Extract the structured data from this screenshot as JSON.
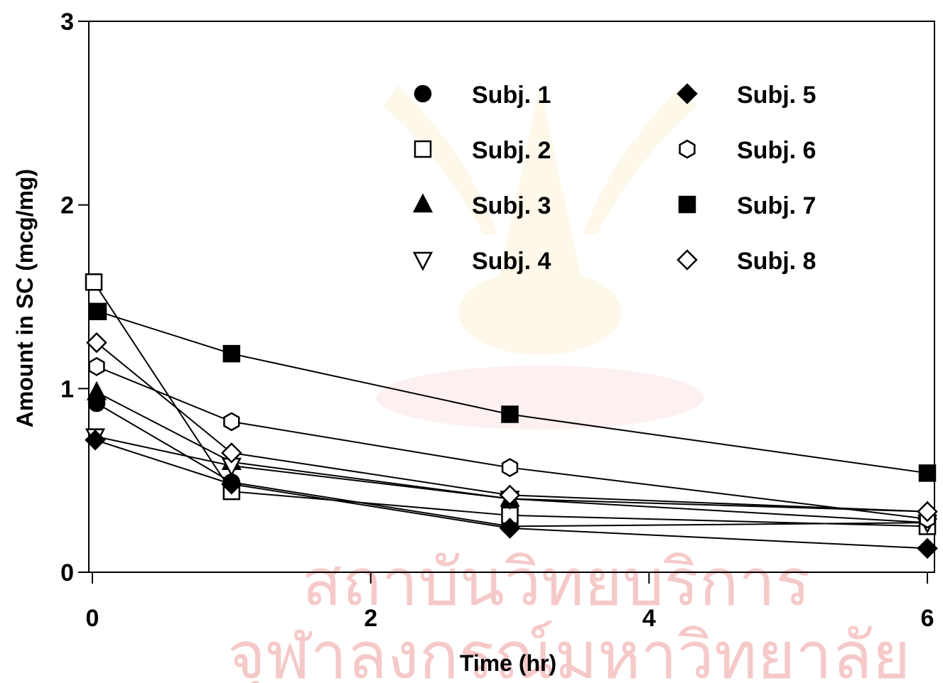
{
  "chart_data": {
    "type": "line",
    "xlabel": "Time (hr)",
    "ylabel": "Amount in SC (mcg/mg)",
    "xlim": [
      0,
      6
    ],
    "ylim": [
      0,
      3
    ],
    "xticks": [
      0,
      2,
      4,
      6
    ],
    "yticks": [
      0,
      1,
      2,
      3
    ],
    "x": [
      0,
      1,
      3,
      6
    ],
    "grid": false,
    "legend_position": "top-right",
    "series": [
      {
        "name": "Subj. 1",
        "marker": "circle-filled",
        "values": [
          0.92,
          0.49,
          0.25,
          0.27
        ]
      },
      {
        "name": "Subj. 2",
        "marker": "square-open",
        "values": [
          1.58,
          0.44,
          0.31,
          0.25
        ]
      },
      {
        "name": "Subj. 3",
        "marker": "triangle-filled",
        "values": [
          0.98,
          0.6,
          0.4,
          0.33
        ]
      },
      {
        "name": "Subj. 4",
        "marker": "triangle-down-open",
        "values": [
          0.74,
          0.58,
          0.4,
          0.27
        ]
      },
      {
        "name": "Subj. 5",
        "marker": "diamond-filled",
        "values": [
          0.72,
          0.48,
          0.24,
          0.13
        ]
      },
      {
        "name": "Subj. 6",
        "marker": "hexagon-open",
        "values": [
          1.12,
          0.82,
          0.57,
          0.29
        ]
      },
      {
        "name": "Subj. 7",
        "marker": "square-filled",
        "values": [
          1.42,
          1.19,
          0.86,
          0.54
        ]
      },
      {
        "name": "Subj. 8",
        "marker": "diamond-open",
        "values": [
          1.25,
          0.65,
          0.42,
          0.33
        ]
      }
    ]
  },
  "watermark": {
    "line1": "สถาบันวิทยบริการ",
    "line2": "จุฬาลงกรณ์มหาวิทยาลัย",
    "color": "#f6c9c9"
  }
}
